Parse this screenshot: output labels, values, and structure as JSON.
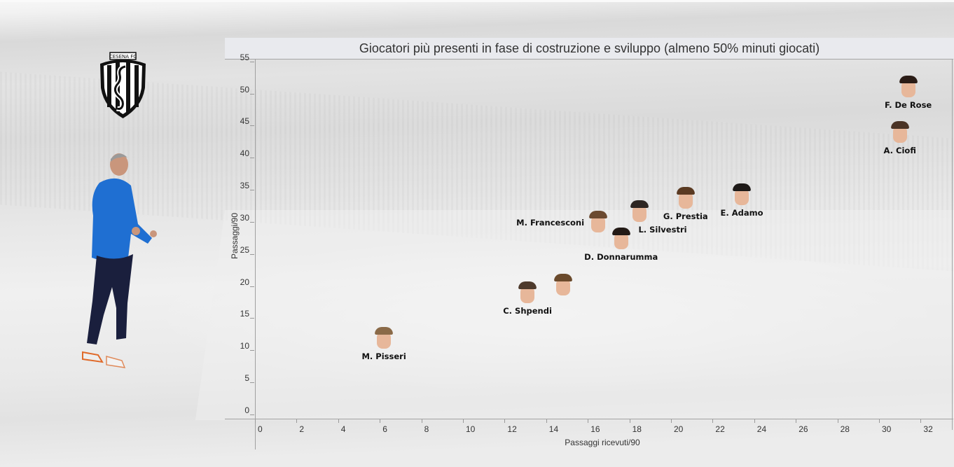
{
  "header": {
    "title": "Giocatori più presenti in fase di costruzione e sviluppo (almeno 50% minuti giocati)"
  },
  "branding": {
    "logo_text": "CESENA FC",
    "logo_icon": "seahorse-crest-icon",
    "coach_image": "coach-photo"
  },
  "chart_data": {
    "type": "scatter",
    "title": "Giocatori più presenti in fase di costruzione e sviluppo (almeno 50% minuti giocati)",
    "xlabel": "Passaggi ricevuti/90",
    "ylabel": "Passaggi/90",
    "xlim": [
      0,
      33.5
    ],
    "ylim": [
      0,
      55.5
    ],
    "x_ticks": [
      0,
      2,
      4,
      6,
      8,
      10,
      12,
      14,
      16,
      18,
      20,
      22,
      24,
      26,
      28,
      30,
      32
    ],
    "y_ticks": [
      0,
      5,
      10,
      15,
      20,
      25,
      30,
      35,
      40,
      45,
      50,
      55
    ],
    "grid": false,
    "marker": "player-face-photo",
    "points": [
      {
        "label": "F. De Rose",
        "x": 31.4,
        "y": 51.0,
        "label_pos": "below"
      },
      {
        "label": "A. Ciofi",
        "x": 31.0,
        "y": 44.0,
        "label_pos": "below"
      },
      {
        "label": "E. Adamo",
        "x": 23.4,
        "y": 34.2,
        "label_pos": "below"
      },
      {
        "label": "G. Prestia",
        "x": 20.7,
        "y": 33.7,
        "label_pos": "below"
      },
      {
        "label": "L. Silvestri",
        "x": 18.5,
        "y": 31.6,
        "label_pos": "below-right"
      },
      {
        "label": "M. Francesconi",
        "x": 16.5,
        "y": 30.0,
        "label_pos": "left"
      },
      {
        "label": "D. Donnarumma",
        "x": 17.6,
        "y": 27.4,
        "label_pos": "below"
      },
      {
        "label": "",
        "x": 14.8,
        "y": 20.2,
        "label_pos": "none"
      },
      {
        "label": "C. Shpendi",
        "x": 13.1,
        "y": 19.0,
        "label_pos": "below"
      },
      {
        "label": "M. Pisseri",
        "x": 6.2,
        "y": 11.9,
        "label_pos": "below"
      }
    ]
  }
}
